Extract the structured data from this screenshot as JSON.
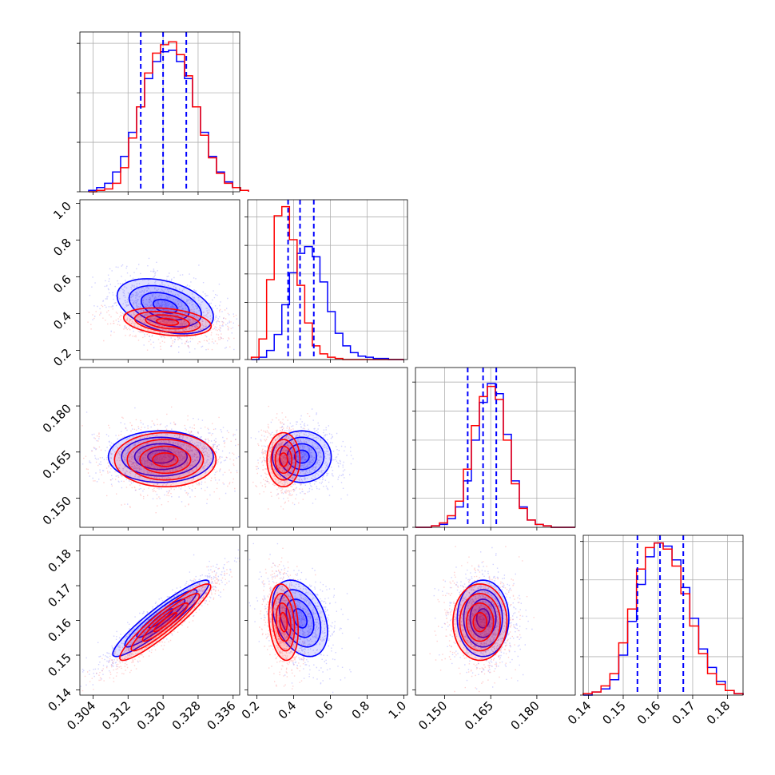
{
  "chart_data": {
    "type": "corner",
    "title": "",
    "series": [
      {
        "name": "",
        "color": "#0000ff"
      },
      {
        "name": "",
        "color": "#ff0000"
      }
    ],
    "quantile_line_color": "#0000ff",
    "params": [
      {
        "range": [
          0.301,
          0.3375
        ],
        "ticks": [
          0.304,
          0.312,
          0.32,
          0.328,
          0.336
        ],
        "tick_labels": [
          "0.304",
          "0.312",
          "0.320",
          "0.328",
          "0.336"
        ]
      },
      {
        "range": [
          0.15,
          1.02
        ],
        "ticks": [
          0.2,
          0.4,
          0.6,
          0.8,
          1.0
        ],
        "tick_labels": [
          "0.2",
          "0.4",
          "0.6",
          "0.8",
          "1.0"
        ]
      },
      {
        "range": [
          0.1405,
          0.1925
        ],
        "ticks": [
          0.15,
          0.165,
          0.18
        ],
        "tick_labels": [
          "0.150",
          "0.165",
          "0.180"
        ]
      },
      {
        "range": [
          0.1385,
          0.1845
        ],
        "ticks": [
          0.14,
          0.15,
          0.16,
          0.17,
          0.18
        ],
        "tick_labels": [
          "0.14",
          "0.15",
          "0.16",
          "0.17",
          "0.18"
        ]
      }
    ],
    "diag_hist": [
      {
        "edges": [
          0.303,
          0.3395
        ],
        "blue": [
          1,
          3,
          6,
          14,
          25,
          42,
          60,
          80,
          92,
          99,
          100,
          92,
          80,
          60,
          42,
          25,
          14,
          7,
          3,
          1
        ],
        "red": [
          0,
          1,
          2,
          6,
          17,
          38,
          60,
          84,
          98,
          104,
          106,
          97,
          82,
          60,
          40,
          24,
          13,
          6,
          3,
          1
        ],
        "ymax": 113,
        "quantiles": [
          0.3149,
          0.32,
          0.3253
        ],
        "hticks": [
          0,
          35,
          70,
          105
        ]
      },
      {
        "edges": [
          0.17,
          1.0
        ],
        "blue": [
          0,
          2,
          8,
          22,
          48,
          76,
          93,
          99,
          90,
          68,
          42,
          23,
          12,
          6,
          3,
          2,
          1,
          1,
          0,
          0
        ],
        "red": [
          2,
          18,
          70,
          126,
          134,
          105,
          65,
          32,
          12,
          5,
          2,
          1,
          0,
          0,
          0,
          0,
          0,
          0,
          0,
          0
        ],
        "ymax": 140,
        "quantiles": [
          0.37,
          0.435,
          0.51
        ],
        "hticks": [
          0,
          25,
          50,
          75,
          100,
          125
        ]
      },
      {
        "edges": [
          0.1405,
          0.1925
        ],
        "blue": [
          0,
          0,
          1,
          2,
          6,
          14,
          32,
          60,
          86,
          99,
          92,
          64,
          32,
          14,
          5,
          2,
          1,
          0,
          0,
          0
        ],
        "red": [
          0,
          0,
          1,
          3,
          8,
          18,
          40,
          70,
          90,
          97,
          88,
          60,
          30,
          13,
          5,
          2,
          1,
          0,
          0,
          0
        ],
        "ymax": 110,
        "quantiles": [
          0.1575,
          0.1625,
          0.1668
        ],
        "hticks": [
          0,
          20,
          40,
          60,
          80,
          100
        ]
      },
      {
        "edges": [
          0.1385,
          0.1845
        ],
        "blue": [
          0,
          2,
          4,
          10,
          26,
          48,
          72,
          90,
          99,
          97,
          88,
          70,
          50,
          30,
          18,
          9,
          3,
          1
        ],
        "red": [
          1,
          2,
          6,
          14,
          34,
          56,
          82,
          96,
          99,
          95,
          84,
          66,
          45,
          27,
          14,
          7,
          3,
          1
        ],
        "ymax": 104,
        "quantiles": [
          0.1541,
          0.1606,
          0.1673
        ],
        "hticks": [
          0,
          25,
          50,
          75,
          100
        ]
      }
    ],
    "pair_2d": [
      {
        "row": 1,
        "col": 0,
        "blue": {
          "mx": 0.3205,
          "my": 0.44,
          "sx": 0.0055,
          "sy": 0.075,
          "rho": -0.38
        },
        "red": {
          "mx": 0.321,
          "my": 0.355,
          "sx": 0.005,
          "sy": 0.038,
          "rho": -0.3
        }
      },
      {
        "row": 2,
        "col": 0,
        "blue": {
          "mx": 0.3195,
          "my": 0.1635,
          "sx": 0.006,
          "sy": 0.0042,
          "rho": 0.0
        },
        "red": {
          "mx": 0.3205,
          "my": 0.1625,
          "sx": 0.0058,
          "sy": 0.0044,
          "rho": 0.0
        }
      },
      {
        "row": 2,
        "col": 1,
        "blue": {
          "mx": 0.445,
          "my": 0.1635,
          "sx": 0.08,
          "sy": 0.0042,
          "rho": 0.0
        },
        "red": {
          "mx": 0.345,
          "my": 0.1625,
          "sx": 0.045,
          "sy": 0.0044,
          "rho": 0.0
        }
      },
      {
        "row": 3,
        "col": 0,
        "blue": {
          "mx": 0.3195,
          "my": 0.1606,
          "sx": 0.0055,
          "sy": 0.0055,
          "rho": 0.93
        },
        "red": {
          "mx": 0.3205,
          "my": 0.1595,
          "sx": 0.0052,
          "sy": 0.0055,
          "rho": 0.93
        }
      },
      {
        "row": 3,
        "col": 1,
        "blue": {
          "mx": 0.435,
          "my": 0.1606,
          "sx": 0.075,
          "sy": 0.0055,
          "rho": -0.35
        },
        "red": {
          "mx": 0.345,
          "my": 0.1595,
          "sx": 0.04,
          "sy": 0.0055,
          "rho": -0.2
        }
      },
      {
        "row": 3,
        "col": 2,
        "blue": {
          "mx": 0.1625,
          "my": 0.1606,
          "sx": 0.0042,
          "sy": 0.0055,
          "rho": 0.0
        },
        "red": {
          "mx": 0.1615,
          "my": 0.1595,
          "sx": 0.0044,
          "sy": 0.0055,
          "rho": 0.0
        }
      }
    ],
    "contour_levels_sigma": [
      0.5,
      1.0,
      1.5,
      2.0
    ],
    "grid": true
  }
}
